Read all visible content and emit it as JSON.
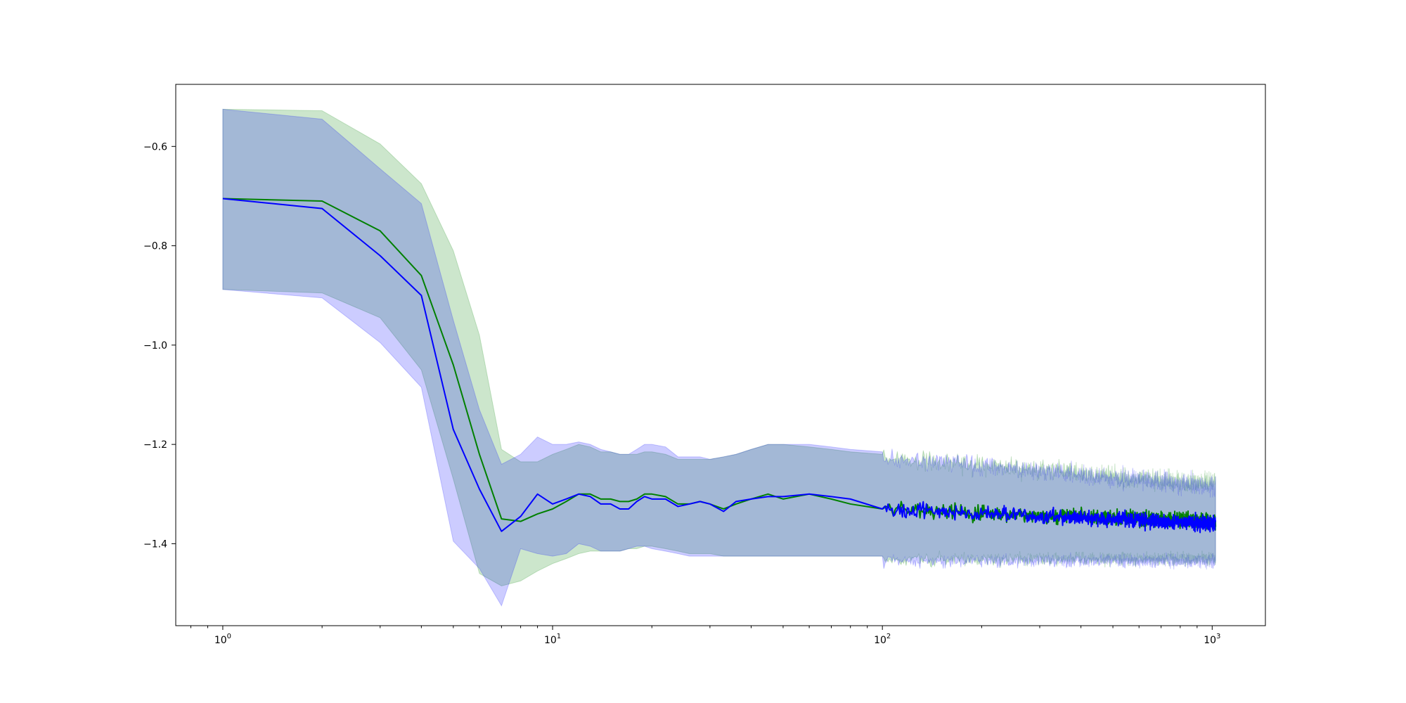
{
  "chart_data": {
    "type": "line",
    "title": "",
    "xlabel": "",
    "ylabel": "",
    "x_scale": "log",
    "xlim": [
      0.72,
      1450
    ],
    "ylim": [
      -1.565,
      -0.475
    ],
    "grid": false,
    "legend": "none",
    "x_ticks": [
      {
        "value": 1,
        "base": "10",
        "exp": "0"
      },
      {
        "value": 10,
        "base": "10",
        "exp": "1"
      },
      {
        "value": 100,
        "base": "10",
        "exp": "2"
      },
      {
        "value": 1000,
        "base": "10",
        "exp": "3"
      }
    ],
    "y_ticks": [
      {
        "value": -0.6,
        "label": "−0.6"
      },
      {
        "value": -0.8,
        "label": "−0.8"
      },
      {
        "value": -1.0,
        "label": "−1.0"
      },
      {
        "value": -1.2,
        "label": "−1.2"
      },
      {
        "value": -1.4,
        "label": "−1.4"
      }
    ],
    "x_max": 1024,
    "series": [
      {
        "color": "#008000",
        "band_color": "#008000",
        "band_opacity": 0.2,
        "x": [
          1,
          2,
          3,
          4,
          5,
          6,
          7,
          8,
          9,
          10,
          11,
          12,
          13,
          14,
          15,
          16,
          17,
          18,
          19,
          20,
          22,
          24,
          26,
          28,
          30,
          33,
          36,
          40,
          45,
          50,
          60,
          70,
          80,
          100
        ],
        "mean": [
          -0.705,
          -0.71,
          -0.77,
          -0.86,
          -1.04,
          -1.22,
          -1.35,
          -1.355,
          -1.34,
          -1.33,
          -1.315,
          -1.3,
          -1.3,
          -1.31,
          -1.31,
          -1.315,
          -1.315,
          -1.31,
          -1.3,
          -1.3,
          -1.305,
          -1.32,
          -1.32,
          -1.315,
          -1.32,
          -1.33,
          -1.32,
          -1.31,
          -1.3,
          -1.31,
          -1.3,
          -1.31,
          -1.32,
          -1.33
        ],
        "upper": [
          -0.525,
          -0.528,
          -0.595,
          -0.675,
          -0.81,
          -0.98,
          -1.21,
          -1.235,
          -1.235,
          -1.22,
          -1.21,
          -1.2,
          -1.205,
          -1.215,
          -1.215,
          -1.22,
          -1.22,
          -1.22,
          -1.215,
          -1.215,
          -1.22,
          -1.23,
          -1.23,
          -1.23,
          -1.23,
          -1.225,
          -1.22,
          -1.21,
          -1.2,
          -1.2,
          -1.205,
          -1.21,
          -1.215,
          -1.22
        ],
        "lower": [
          -0.888,
          -0.895,
          -0.945,
          -1.05,
          -1.27,
          -1.46,
          -1.485,
          -1.475,
          -1.455,
          -1.44,
          -1.43,
          -1.42,
          -1.415,
          -1.415,
          -1.415,
          -1.415,
          -1.41,
          -1.41,
          -1.405,
          -1.405,
          -1.41,
          -1.415,
          -1.42,
          -1.42,
          -1.42,
          -1.425,
          -1.425,
          -1.425,
          -1.425,
          -1.425,
          -1.425,
          -1.425,
          -1.425,
          -1.425
        ],
        "tail_mean": -1.355,
        "tail_half_width": 0.075,
        "tail_noise": 0.022
      },
      {
        "color": "#0000ff",
        "band_color": "#0000ff",
        "band_opacity": 0.2,
        "x": [
          1,
          2,
          3,
          4,
          5,
          6,
          7,
          8,
          9,
          10,
          11,
          12,
          13,
          14,
          15,
          16,
          17,
          18,
          19,
          20,
          22,
          24,
          26,
          28,
          30,
          33,
          36,
          40,
          45,
          50,
          60,
          70,
          80,
          100
        ],
        "mean": [
          -0.705,
          -0.725,
          -0.82,
          -0.9,
          -1.17,
          -1.29,
          -1.375,
          -1.345,
          -1.3,
          -1.32,
          -1.31,
          -1.3,
          -1.305,
          -1.32,
          -1.32,
          -1.33,
          -1.33,
          -1.315,
          -1.305,
          -1.31,
          -1.31,
          -1.325,
          -1.32,
          -1.315,
          -1.32,
          -1.335,
          -1.315,
          -1.31,
          -1.305,
          -1.305,
          -1.3,
          -1.305,
          -1.31,
          -1.33
        ],
        "upper": [
          -0.525,
          -0.545,
          -0.645,
          -0.715,
          -0.95,
          -1.13,
          -1.24,
          -1.22,
          -1.185,
          -1.2,
          -1.2,
          -1.195,
          -1.2,
          -1.21,
          -1.215,
          -1.22,
          -1.22,
          -1.21,
          -1.2,
          -1.2,
          -1.205,
          -1.225,
          -1.225,
          -1.225,
          -1.23,
          -1.225,
          -1.22,
          -1.21,
          -1.2,
          -1.2,
          -1.2,
          -1.205,
          -1.21,
          -1.215
        ],
        "lower": [
          -0.888,
          -0.905,
          -0.995,
          -1.085,
          -1.395,
          -1.45,
          -1.525,
          -1.41,
          -1.42,
          -1.425,
          -1.42,
          -1.4,
          -1.405,
          -1.415,
          -1.415,
          -1.415,
          -1.41,
          -1.405,
          -1.405,
          -1.41,
          -1.415,
          -1.42,
          -1.425,
          -1.425,
          -1.425,
          -1.425,
          -1.425,
          -1.425,
          -1.425,
          -1.425,
          -1.425,
          -1.425,
          -1.425,
          -1.425
        ],
        "tail_mean": -1.36,
        "tail_half_width": 0.075,
        "tail_noise": 0.022
      }
    ]
  }
}
